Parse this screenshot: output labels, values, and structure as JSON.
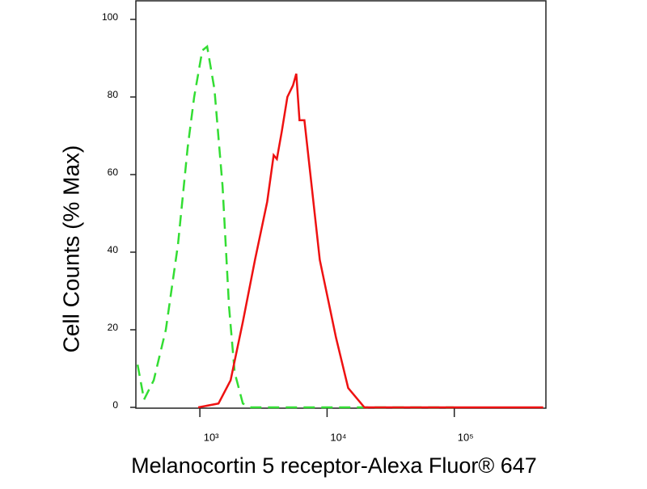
{
  "chart_data": {
    "type": "line",
    "xlabel": "Melanocortin 5 receptor-Alexa Fluor® 647",
    "ylabel": "Cell Counts (% Max)",
    "xscale": "log",
    "xlim": [
      314,
      525000
    ],
    "ylim": [
      0,
      105
    ],
    "xticks": [
      {
        "value": 1000,
        "label": "10³"
      },
      {
        "value": 10000,
        "label": "10⁴"
      },
      {
        "value": 100000,
        "label": "10⁵"
      }
    ],
    "yticks": [
      0,
      20,
      40,
      60,
      80,
      100
    ],
    "series": [
      {
        "color": "#33dd33",
        "dashed": true,
        "x": [
          324,
          364,
          434,
          540,
          673,
          802,
          902,
          1045,
          1141,
          1302,
          1508,
          1695,
          1877,
          2176,
          2518,
          98600
        ],
        "values": [
          11,
          2,
          7,
          20,
          42,
          67,
          80,
          92,
          93,
          82,
          57,
          26,
          9,
          1,
          0,
          0
        ]
      },
      {
        "color": "#ee1111",
        "dashed": false,
        "x": [
          971,
          1401,
          1745,
          2176,
          2711,
          3383,
          3803,
          4030,
          4399,
          4874,
          5398,
          5727,
          6070,
          6633,
          7568,
          8765,
          10150,
          11750,
          14650,
          19650,
          40850,
          500000
        ],
        "values": [
          0,
          1,
          7,
          22,
          38,
          53,
          65,
          64,
          71,
          80,
          83,
          86,
          74,
          74,
          57,
          38,
          28,
          18,
          5,
          0,
          0,
          0
        ]
      }
    ]
  }
}
